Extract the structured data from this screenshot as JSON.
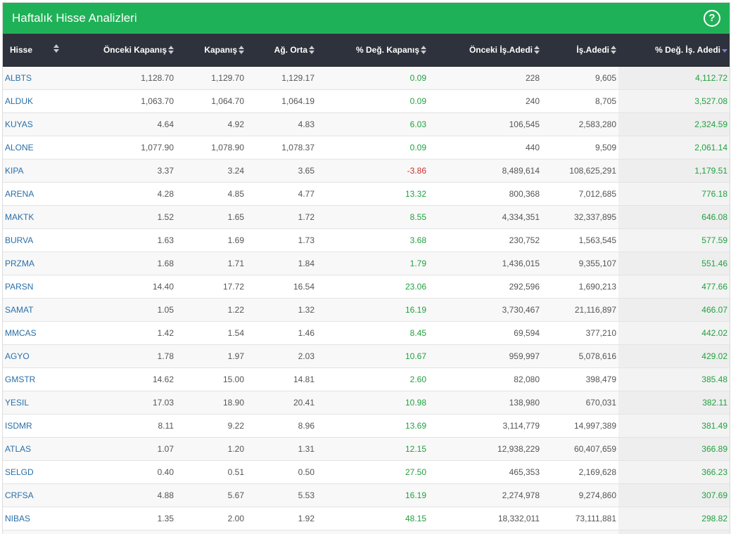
{
  "panel": {
    "title": "Haftalık Hisse Analizleri",
    "help_icon": "question-circle-icon",
    "accent_color": "#1fb157"
  },
  "table": {
    "columns": [
      "Hisse",
      "Önceki Kapanış",
      "Kapanış",
      "Ağ. Orta",
      "% Değ. Kapanış",
      "Önceki İş.Adedi",
      "İş.Adedi",
      "% Değ. İş. Adedi"
    ],
    "sorted_column": "% Değ. İş. Adedi",
    "sort_direction": "desc",
    "colors": {
      "positive": "#20a13f",
      "negative": "#c9302c",
      "symbol_link": "#2a6fa8",
      "header_bg": "#2e323c"
    },
    "rows": [
      [
        "ALBTS",
        "1,128.70",
        "1,129.70",
        "1,129.17",
        "0.09",
        "228",
        "9,605",
        "4,112.72"
      ],
      [
        "ALDUK",
        "1,063.70",
        "1,064.70",
        "1,064.19",
        "0.09",
        "240",
        "8,705",
        "3,527.08"
      ],
      [
        "KUYAS",
        "4.64",
        "4.92",
        "4.83",
        "6.03",
        "106,545",
        "2,583,280",
        "2,324.59"
      ],
      [
        "ALONE",
        "1,077.90",
        "1,078.90",
        "1,078.37",
        "0.09",
        "440",
        "9,509",
        "2,061.14"
      ],
      [
        "KIPA",
        "3.37",
        "3.24",
        "3.65",
        "-3.86",
        "8,489,614",
        "108,625,291",
        "1,179.51"
      ],
      [
        "ARENA",
        "4.28",
        "4.85",
        "4.77",
        "13.32",
        "800,368",
        "7,012,685",
        "776.18"
      ],
      [
        "MAKTK",
        "1.52",
        "1.65",
        "1.72",
        "8.55",
        "4,334,351",
        "32,337,895",
        "646.08"
      ],
      [
        "BURVA",
        "1.63",
        "1.69",
        "1.73",
        "3.68",
        "230,752",
        "1,563,545",
        "577.59"
      ],
      [
        "PRZMA",
        "1.68",
        "1.71",
        "1.84",
        "1.79",
        "1,436,015",
        "9,355,107",
        "551.46"
      ],
      [
        "PARSN",
        "14.40",
        "17.72",
        "16.54",
        "23.06",
        "292,596",
        "1,690,213",
        "477.66"
      ],
      [
        "SAMAT",
        "1.05",
        "1.22",
        "1.32",
        "16.19",
        "3,730,467",
        "21,116,897",
        "466.07"
      ],
      [
        "MMCAS",
        "1.42",
        "1.54",
        "1.46",
        "8.45",
        "69,594",
        "377,210",
        "442.02"
      ],
      [
        "AGYO",
        "1.78",
        "1.97",
        "2.03",
        "10.67",
        "959,997",
        "5,078,616",
        "429.02"
      ],
      [
        "GMSTR",
        "14.62",
        "15.00",
        "14.81",
        "2.60",
        "82,080",
        "398,479",
        "385.48"
      ],
      [
        "YESIL",
        "17.03",
        "18.90",
        "20.41",
        "10.98",
        "138,980",
        "670,031",
        "382.11"
      ],
      [
        "ISDMR",
        "8.11",
        "9.22",
        "8.96",
        "13.69",
        "3,114,779",
        "14,997,389",
        "381.49"
      ],
      [
        "ATLAS",
        "1.07",
        "1.20",
        "1.31",
        "12.15",
        "12,938,229",
        "60,407,659",
        "366.89"
      ],
      [
        "SELGD",
        "0.40",
        "0.51",
        "0.50",
        "27.50",
        "465,353",
        "2,169,628",
        "366.23"
      ],
      [
        "CRFSA",
        "4.88",
        "5.67",
        "5.53",
        "16.19",
        "2,274,978",
        "9,274,860",
        "307.69"
      ],
      [
        "NIBAS",
        "1.35",
        "2.00",
        "1.92",
        "48.15",
        "18,332,011",
        "73,111,881",
        "298.82"
      ],
      [
        "",
        "",
        "",
        "",
        "",
        "",
        "",
        ""
      ]
    ]
  }
}
